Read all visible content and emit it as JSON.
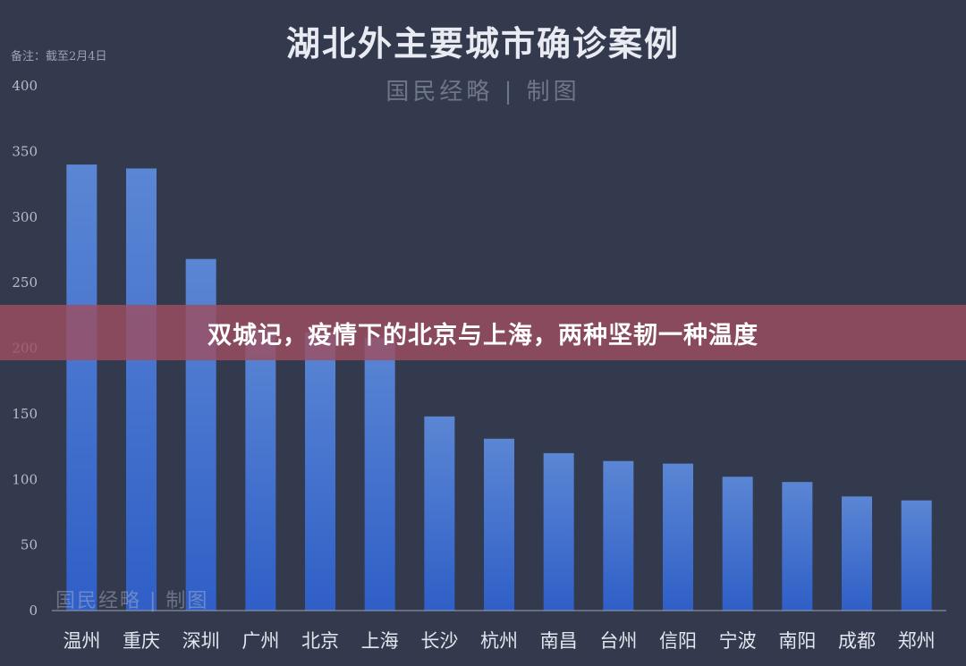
{
  "header": {
    "title": "湖北外主要城市确诊案例",
    "source": "国民经略 | 制图",
    "note": "备注：截至2月4日",
    "watermark": "国民经略 | 制图"
  },
  "banner": {
    "text": "双城记，疫情下的北京与上海，两种坚韧一种温度"
  },
  "colors": {
    "background": "#333a4d",
    "bar_top": "#5b86d4",
    "bar_bottom": "#2f5fc7",
    "axis": "#9aa1b2",
    "banner": "#9e4e60"
  },
  "chart_data": {
    "type": "bar",
    "title": "湖北外主要城市确诊案例",
    "xlabel": "",
    "ylabel": "",
    "ylim": [
      0,
      400
    ],
    "yticks": [
      0,
      50,
      100,
      150,
      200,
      250,
      300,
      350,
      400
    ],
    "grid": false,
    "categories": [
      "温州",
      "重庆",
      "深圳",
      "广州",
      "北京",
      "上海",
      "长沙",
      "杭州",
      "南昌",
      "台州",
      "信阳",
      "宁波",
      "南阳",
      "成都",
      "郑州"
    ],
    "values": [
      340,
      337,
      268,
      215,
      212,
      208,
      148,
      131,
      120,
      114,
      112,
      102,
      98,
      87,
      84
    ]
  }
}
